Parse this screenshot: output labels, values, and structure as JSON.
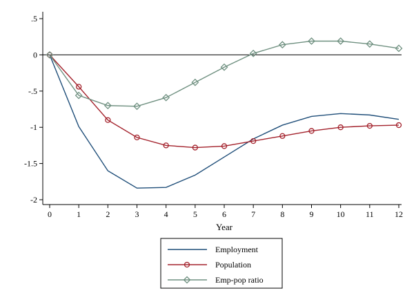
{
  "chart_data": {
    "type": "line",
    "xlabel": "Year",
    "ylabel": "",
    "x": [
      0,
      1,
      2,
      3,
      4,
      5,
      6,
      7,
      8,
      9,
      10,
      11,
      12
    ],
    "xlim": [
      0,
      12
    ],
    "ylim": [
      -2.1,
      0.6
    ],
    "x_ticks": [
      "0",
      "1",
      "2",
      "3",
      "4",
      "5",
      "6",
      "7",
      "8",
      "9",
      "10",
      "11",
      "12"
    ],
    "y_ticks": [
      {
        "value": 0.5,
        "label": ".5"
      },
      {
        "value": 0,
        "label": "0"
      },
      {
        "value": -0.5,
        "label": "-.5"
      },
      {
        "value": -1,
        "label": "-1"
      },
      {
        "value": -1.5,
        "label": "-1.5"
      },
      {
        "value": -2,
        "label": "-2"
      }
    ],
    "zero_line": true,
    "grid": false,
    "legend_position": "bottom",
    "series": [
      {
        "name": "Employment",
        "color": "#1f4e79",
        "marker": "none",
        "values": [
          0,
          -0.99,
          -1.6,
          -1.84,
          -1.83,
          -1.66,
          -1.41,
          -1.16,
          -0.97,
          -0.85,
          -0.81,
          -0.83,
          -0.89
        ]
      },
      {
        "name": "Population",
        "color": "#a3212b",
        "marker": "circle",
        "values": [
          0,
          -0.44,
          -0.9,
          -1.14,
          -1.25,
          -1.28,
          -1.26,
          -1.19,
          -1.12,
          -1.05,
          -1.0,
          -0.98,
          -0.97
        ]
      },
      {
        "name": "Emp-pop ratio",
        "color": "#6f9080",
        "marker": "diamond",
        "values": [
          0,
          -0.56,
          -0.7,
          -0.71,
          -0.59,
          -0.38,
          -0.17,
          0.02,
          0.14,
          0.19,
          0.19,
          0.15,
          0.09
        ]
      }
    ]
  }
}
